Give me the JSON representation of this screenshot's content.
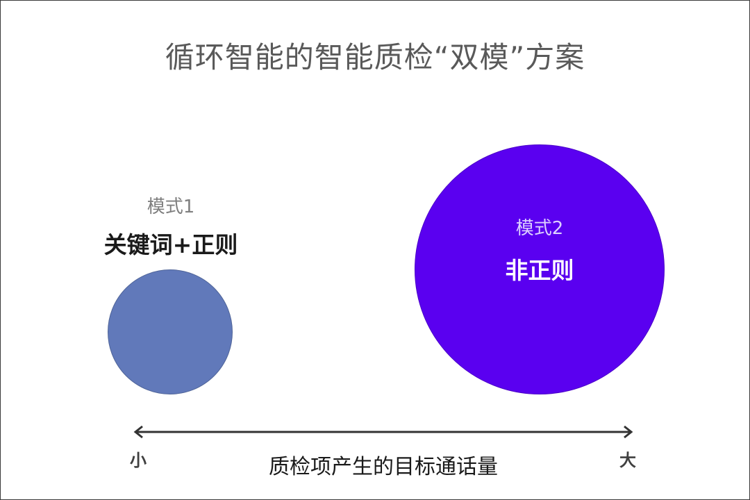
{
  "title": "循环智能的智能质检“双模”方案",
  "mode1": {
    "caption": "模式1",
    "label": "关键词+正则",
    "color": "#6179ba"
  },
  "mode2": {
    "caption": "模式2",
    "label": "非正则",
    "color": "#5a00f0"
  },
  "axis": {
    "min_label": "小",
    "max_label": "大",
    "label": "质检项产生的目标通话量"
  }
}
